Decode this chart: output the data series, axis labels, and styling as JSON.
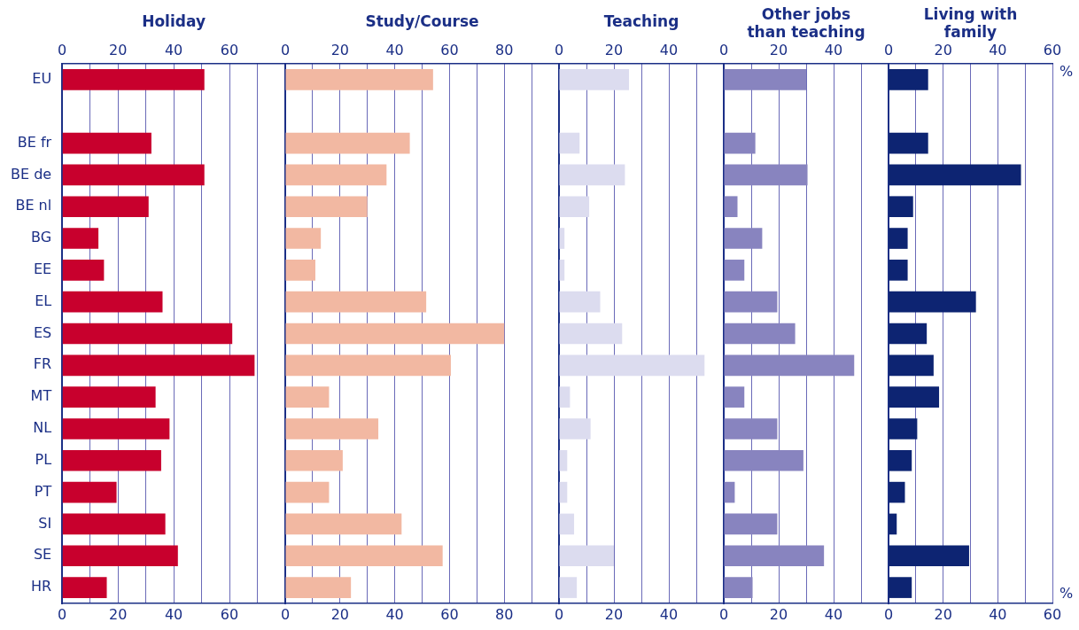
{
  "chart_data": [
    {
      "type": "bar",
      "orientation": "horizontal",
      "title": "Holiday",
      "categories": [
        "EU",
        null,
        "BE fr",
        "BE de",
        "BE nl",
        "BG",
        "EE",
        "EL",
        "ES",
        "FR",
        "MT",
        "NL",
        "PL",
        "PT",
        "SI",
        "SE",
        "HR"
      ],
      "color": "#c8002d",
      "values": [
        51,
        null,
        32,
        51,
        31,
        13,
        15,
        36,
        61,
        69,
        33.5,
        38.5,
        35.5,
        19.5,
        37,
        41.5,
        16
      ],
      "xlim": [
        0,
        80
      ],
      "xticks": [
        0,
        {
          "value": 10,
          "label": null
        },
        20,
        {
          "value": 30,
          "label": null
        },
        40,
        {
          "value": 50,
          "label": null
        },
        60,
        {
          "value": 70,
          "label": null
        }
      ],
      "x2lim": [
        0,
        80
      ],
      "x2ticks": [
        0,
        20,
        40,
        60
      ],
      "grid": "x",
      "legend": false
    },
    {
      "type": "bar",
      "orientation": "horizontal",
      "title": "Study/Course",
      "categories": [
        null,
        null,
        null,
        null,
        null,
        null,
        null,
        null,
        null,
        null,
        null,
        null,
        null,
        null,
        null,
        null,
        null
      ],
      "color": "#f2b8a2",
      "values": [
        54,
        null,
        45.5,
        37,
        30,
        13,
        11,
        51.5,
        80,
        60.5,
        16,
        34,
        21,
        16,
        42.5,
        57.5,
        24
      ],
      "xlim": [
        0,
        100
      ],
      "xticks": [
        0,
        {
          "value": 10,
          "label": null
        },
        20,
        {
          "value": 30,
          "label": null
        },
        40,
        {
          "value": 50,
          "label": null
        },
        60,
        {
          "value": 70,
          "label": null
        },
        80,
        {
          "value": 90,
          "label": null
        }
      ],
      "x2lim": [
        0,
        100
      ],
      "x2ticks": [
        0,
        20,
        40,
        60,
        80
      ],
      "grid": "x",
      "legend": false,
      "tick_labels": "x"
    },
    {
      "type": "bar",
      "orientation": "horizontal",
      "title": "Teaching",
      "categories": [
        null,
        null,
        null,
        null,
        null,
        null,
        null,
        null,
        null,
        null,
        null,
        null,
        null,
        null,
        null,
        null,
        null
      ],
      "color": "#dcdcef",
      "values": [
        25.5,
        null,
        7.5,
        24,
        11,
        2,
        2,
        15,
        23,
        53,
        4,
        11.5,
        3,
        3,
        5.5,
        20,
        6.5
      ],
      "xlim": [
        0,
        60
      ],
      "xticks": [
        0,
        {
          "value": 10,
          "label": null
        },
        20,
        {
          "value": 30,
          "label": null
        },
        40,
        {
          "value": 50,
          "label": null
        }
      ],
      "x2lim": [
        0,
        60
      ],
      "x2ticks": [
        0,
        20,
        40
      ],
      "grid": "x",
      "legend": false,
      "tick_labels": "x"
    },
    {
      "type": "bar",
      "orientation": "horizontal",
      "title": "Other jobs than teaching",
      "categories": [
        null,
        null,
        null,
        null,
        null,
        null,
        null,
        null,
        null,
        null,
        null,
        null,
        null,
        null,
        null,
        null,
        null
      ],
      "color": "#8884bf",
      "values": [
        30,
        null,
        11.5,
        30.5,
        5,
        14,
        7.5,
        19.5,
        26,
        47.5,
        7.5,
        19.5,
        29,
        4,
        19.5,
        36.5,
        10.5
      ],
      "xlim": [
        0,
        60
      ],
      "xticks": [
        0,
        {
          "value": 10,
          "label": null
        },
        20,
        {
          "value": 30,
          "label": null
        },
        40,
        {
          "value": 50,
          "label": null
        }
      ],
      "x2lim": [
        0,
        60
      ],
      "x2ticks": [
        0,
        20,
        40
      ],
      "grid": "x",
      "legend": false,
      "tick_labels": "x"
    },
    {
      "type": "bar",
      "orientation": "horizontal",
      "title": "Living with family",
      "categories": [
        null,
        null,
        null,
        null,
        null,
        null,
        null,
        null,
        null,
        null,
        null,
        null,
        null,
        null,
        null,
        null,
        null
      ],
      "color": "#0d2472",
      "values": [
        14.5,
        null,
        14.5,
        48.5,
        9,
        7,
        7,
        32,
        14,
        16.5,
        18.5,
        10.5,
        8.5,
        6,
        3,
        29.5,
        8.5
      ],
      "xlim": [
        0,
        60
      ],
      "xticks": [
        0,
        {
          "value": 10,
          "label": null
        },
        20,
        {
          "value": 30,
          "label": null
        },
        40,
        {
          "value": 50,
          "label": null
        },
        60
      ],
      "x2lim": [
        0,
        60
      ],
      "x2ticks": [
        0,
        20,
        40,
        60
      ],
      "xlabel": "%",
      "x2label": "%",
      "grid": "x",
      "legend": false,
      "tick_labels": "x"
    }
  ]
}
